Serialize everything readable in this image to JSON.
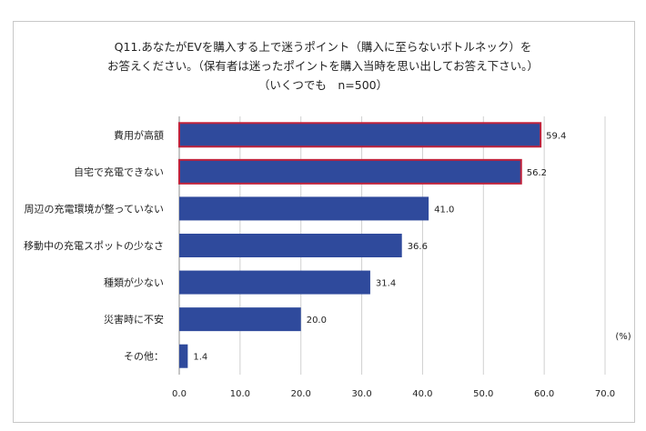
{
  "chart_data": {
    "type": "bar",
    "orientation": "horizontal",
    "title_lines": [
      "Q11.あなたがEVを購入する上で迷うポイント（購入に至らないボトルネック）を",
      "お答えください。（保有者は迷ったポイントを購入当時を思い出してお答え下さい。）",
      "（いくつでも　n=500）"
    ],
    "unit_label": "(%)",
    "categories": [
      "費用が高額",
      "自宅で充電できない",
      "周辺の充電環境が整っていない",
      "移動中の充電スポットの少なさ",
      "種類が少ない",
      "災害時に不安",
      "その他："
    ],
    "values": [
      59.4,
      56.2,
      41.0,
      36.6,
      31.4,
      20.0,
      1.4
    ],
    "value_labels": [
      "59.4",
      "56.2",
      "41.0",
      "36.6",
      "31.4",
      "20.0",
      "1.4"
    ],
    "highlighted": [
      true,
      true,
      false,
      false,
      false,
      false,
      false
    ],
    "xlim": [
      0,
      70
    ],
    "ticks": [
      "0.0",
      "10.0",
      "20.0",
      "30.0",
      "40.0",
      "50.0",
      "60.0",
      "70.0"
    ],
    "tick_values": [
      0,
      10,
      20,
      30,
      40,
      50,
      60,
      70
    ],
    "grid": true,
    "colors": {
      "bar": "#2f4a9c",
      "highlight_border": "#c0223b",
      "grid": "#d0d0d0",
      "axis": "#8c8c8c"
    }
  }
}
